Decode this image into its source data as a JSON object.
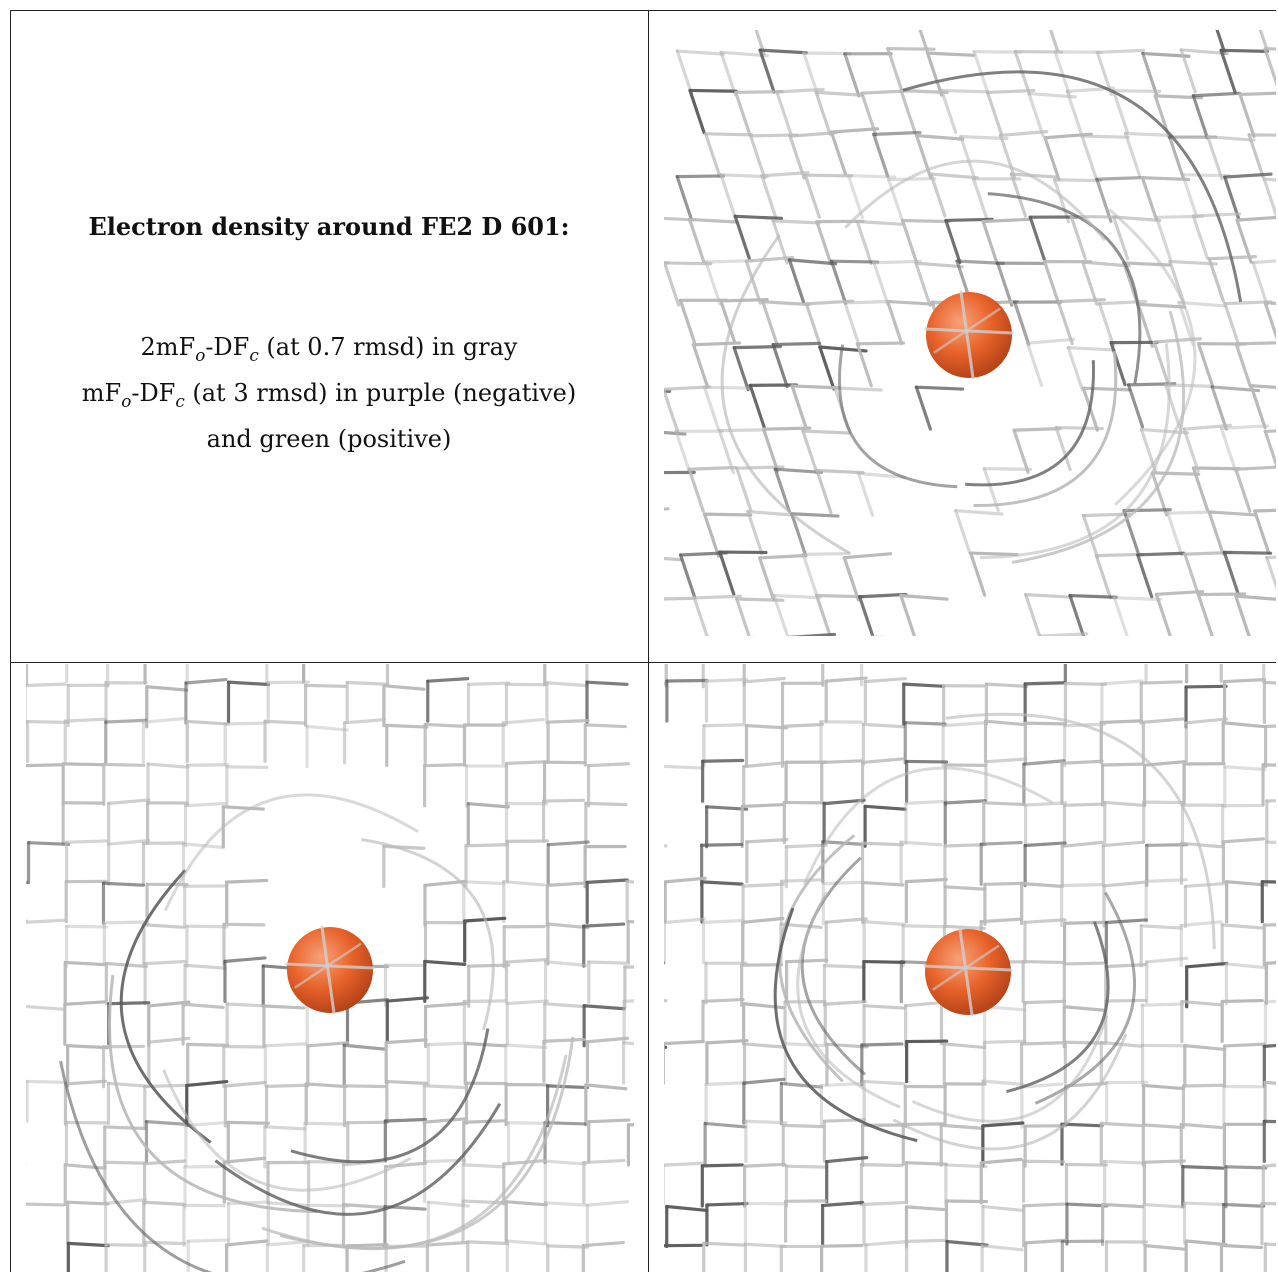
{
  "figure": {
    "title": "Electron density around FE2 D 601:",
    "line1": {
      "a": "2mF",
      "a_sub": "o",
      "b": "-DF",
      "b_sub": "c",
      "rest": " (at 0.7 rmsd) in gray"
    },
    "line2": {
      "a": "mF",
      "a_sub": "o",
      "b": "-DF",
      "b_sub": "c",
      "rest": " (at 3 rmsd) in purple (negative)"
    },
    "line3": "and green (positive)"
  },
  "colors": {
    "mesh": "#b8b8b8",
    "mesh_dark": "#5a5a5a",
    "atom": "#e8632a",
    "atom_highlight": "#f7a27a",
    "border": "#222222"
  },
  "panels": [
    {
      "name": "view-1",
      "icon": "electron-density-mesh-icon"
    },
    {
      "name": "view-2",
      "icon": "electron-density-mesh-icon"
    },
    {
      "name": "view-3",
      "icon": "electron-density-mesh-icon"
    }
  ]
}
